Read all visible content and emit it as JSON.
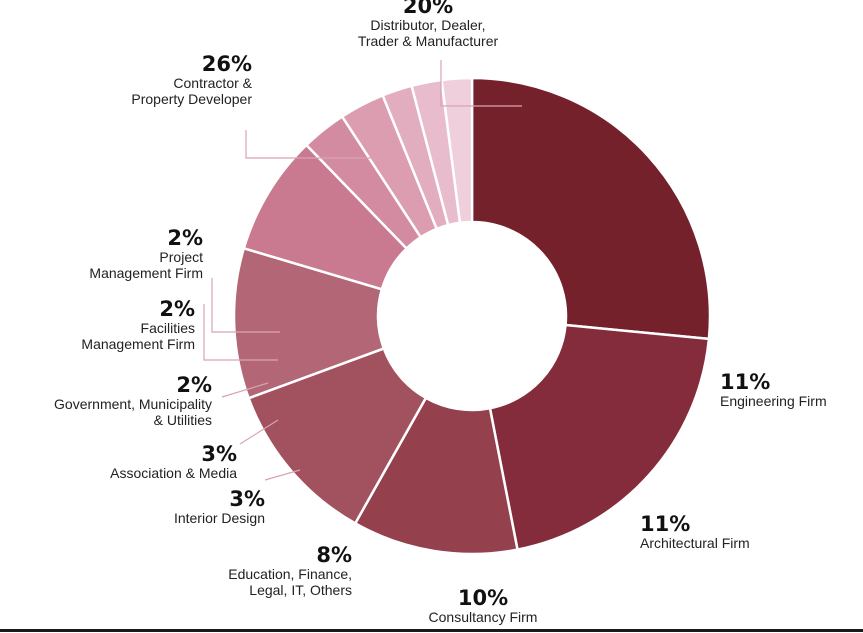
{
  "chart_data": {
    "type": "pie",
    "variant": "donut",
    "start_angle_deg": 270,
    "direction": "clockwise",
    "slices": [
      {
        "name": "Contractor & Property Developer",
        "value": 26,
        "label": "26%",
        "lines": [
          "Contractor &",
          "Property Developer"
        ],
        "color": "#74212c"
      },
      {
        "name": "Distributor, Dealer, Trader & Manufacturer",
        "value": 20,
        "label": "20%",
        "lines": [
          "Distributor, Dealer,",
          "Trader & Manufacturer"
        ],
        "color": "#842c3b"
      },
      {
        "name": "Engineering Firm",
        "value": 11,
        "label": "11%",
        "lines": [
          "Engineering Firm"
        ],
        "color": "#94404d"
      },
      {
        "name": "Architectural Firm",
        "value": 11,
        "label": "11%",
        "lines": [
          "Architectural Firm"
        ],
        "color": "#a2525f"
      },
      {
        "name": "Consultancy Firm",
        "value": 10,
        "label": "10%",
        "lines": [
          "Consultancy Firm"
        ],
        "color": "#b36676"
      },
      {
        "name": "Education, Finance, Legal, IT, Others",
        "value": 8,
        "label": "8%",
        "lines": [
          "Education, Finance,",
          "Legal, IT, Others"
        ],
        "color": "#c97a90"
      },
      {
        "name": "Interior Design",
        "value": 3,
        "label": "3%",
        "lines": [
          "Interior Design"
        ],
        "color": "#d28ba0"
      },
      {
        "name": "Association & Media",
        "value": 3,
        "label": "3%",
        "lines": [
          "Association & Media"
        ],
        "color": "#dc9db1"
      },
      {
        "name": "Government, Municipality & Utilities",
        "value": 2,
        "label": "2%",
        "lines": [
          "Government, Municipality",
          "& Utilities"
        ],
        "color": "#e3adc0"
      },
      {
        "name": "Facilities Management Firm",
        "value": 2,
        "label": "2%",
        "lines": [
          "Facilities",
          "Management Firm"
        ],
        "color": "#e8bccd"
      },
      {
        "name": "Project Management Firm",
        "value": 2,
        "label": "2%",
        "lines": [
          "Project",
          "Management Firm"
        ],
        "color": "#efcfdc"
      }
    ],
    "leader_color": "#d9a3b4"
  }
}
